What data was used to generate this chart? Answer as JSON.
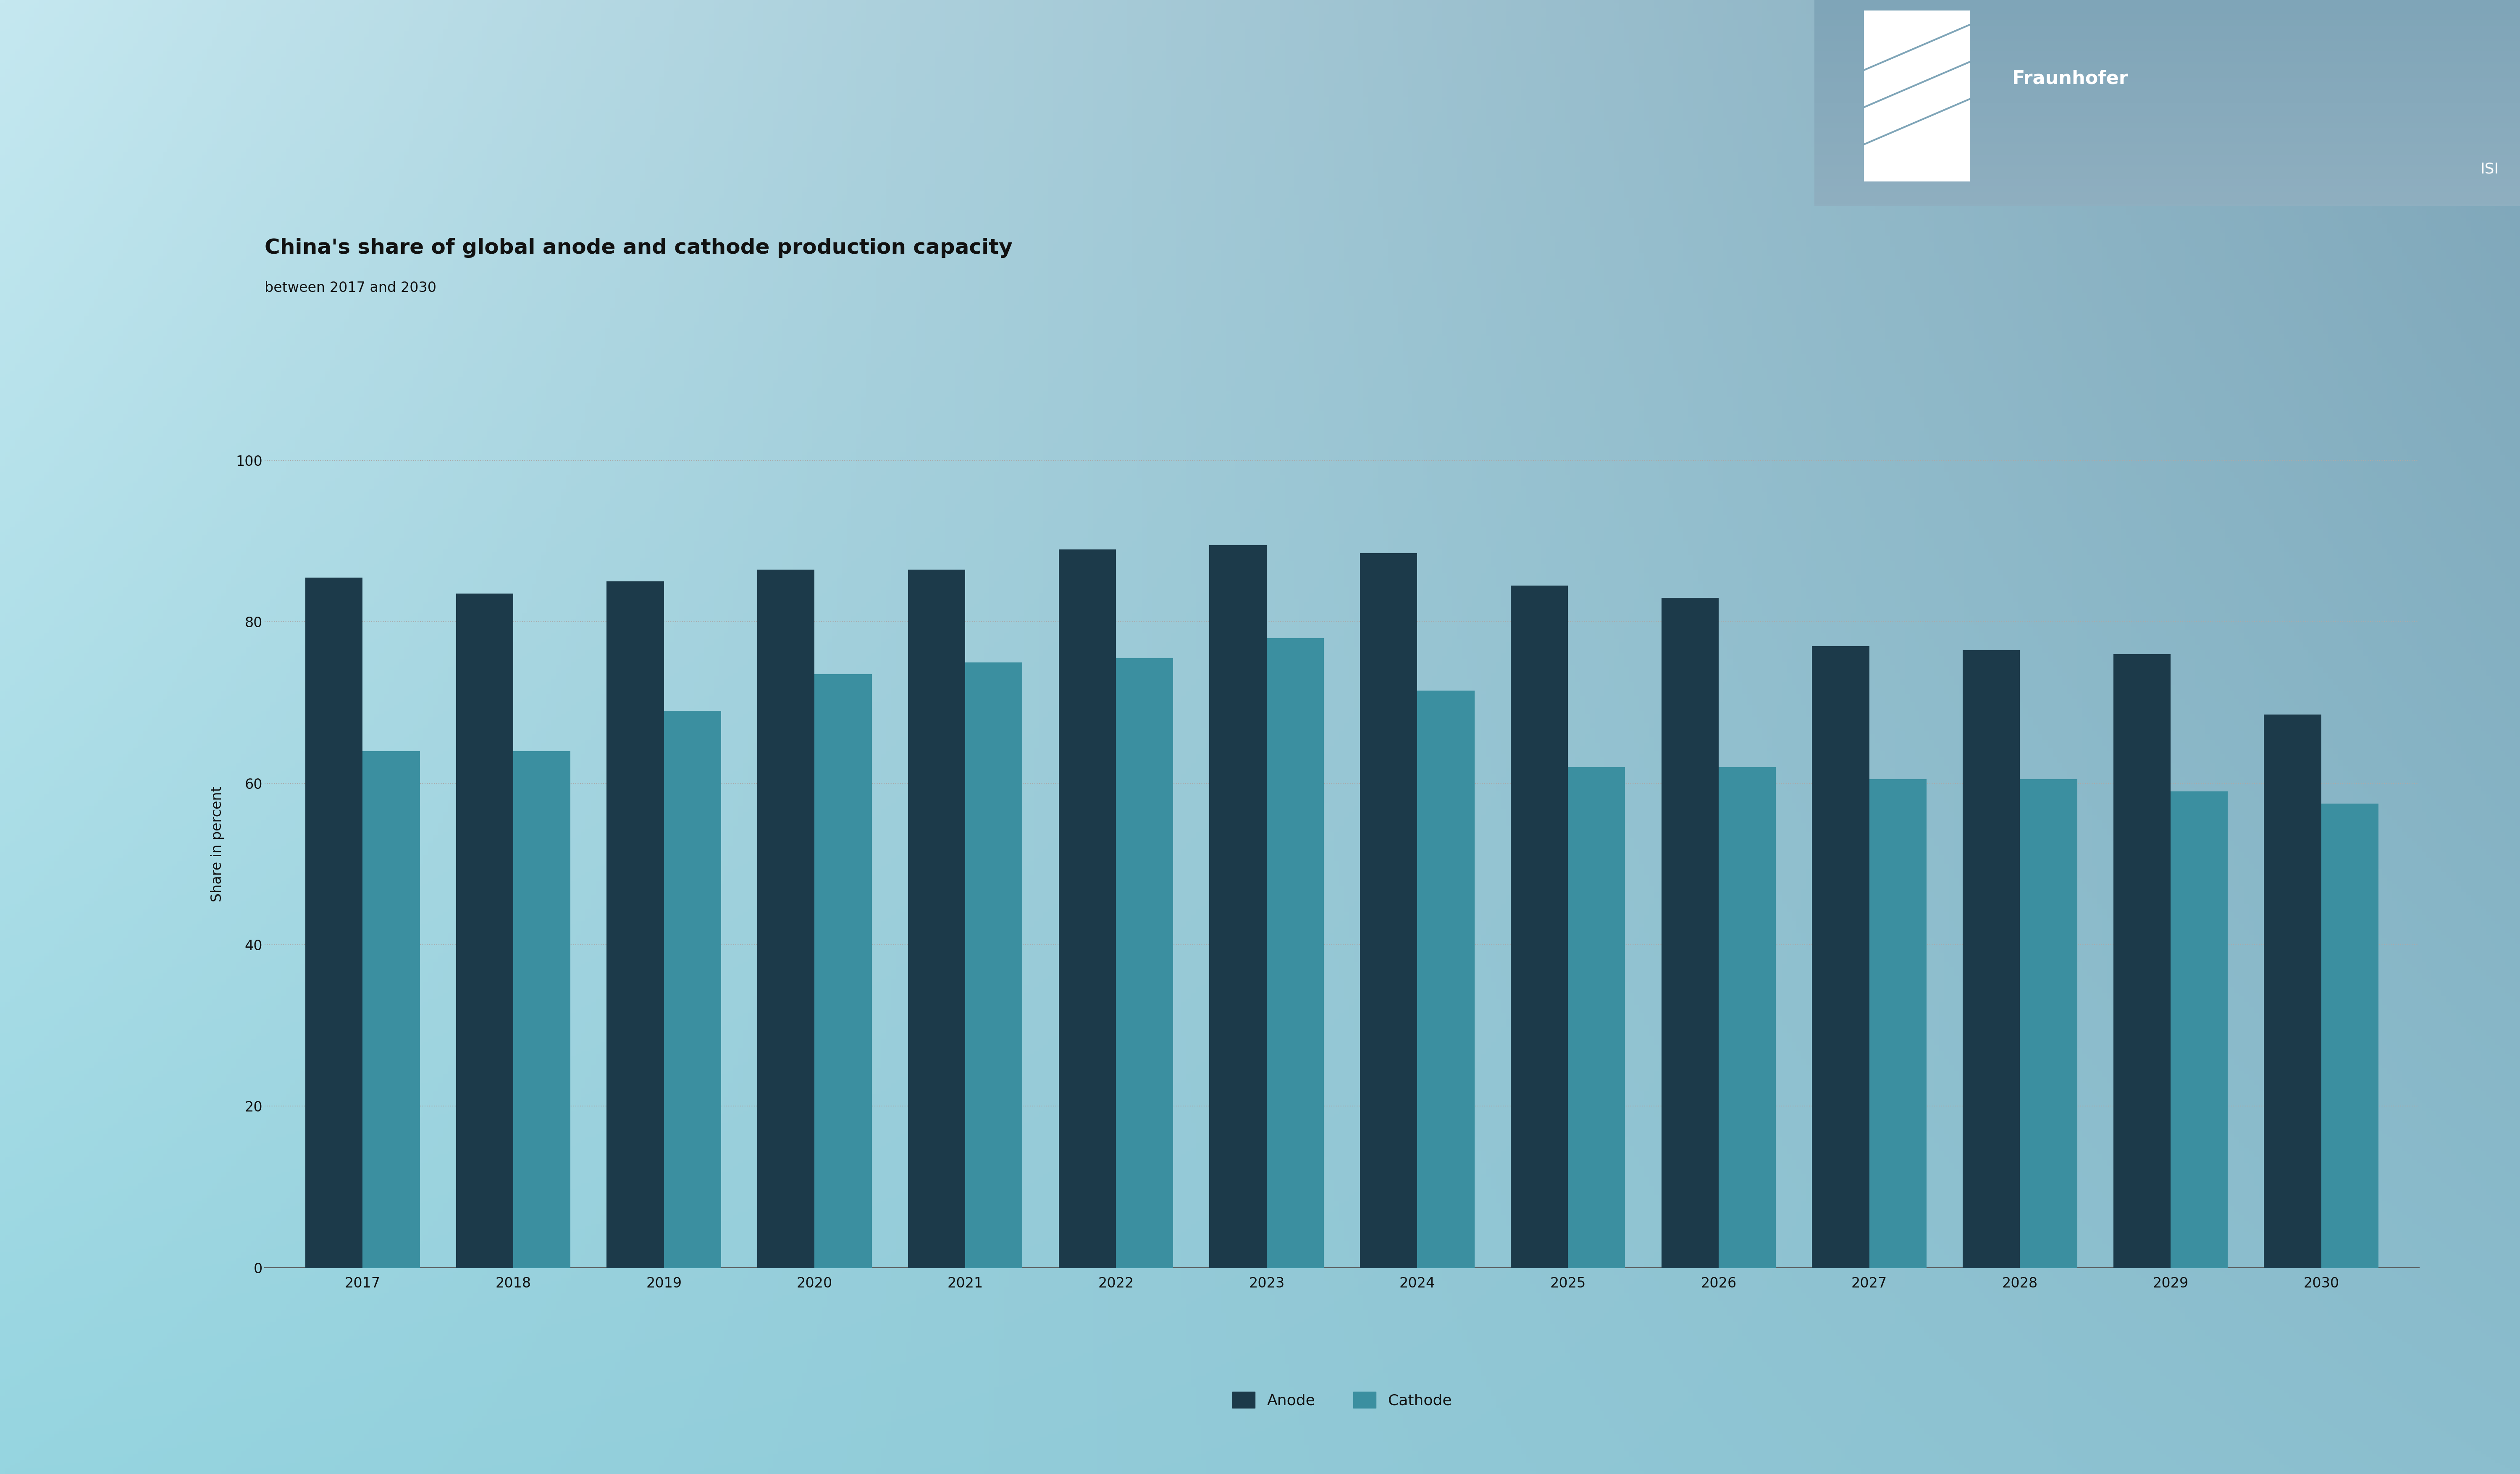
{
  "title": "China's share of global anode and cathode production capacity",
  "subtitle": "between 2017 and 2030",
  "ylabel": "Share in percent",
  "years": [
    2017,
    2018,
    2019,
    2020,
    2021,
    2022,
    2023,
    2024,
    2025,
    2026,
    2027,
    2028,
    2029,
    2030
  ],
  "anode": [
    85.5,
    83.5,
    85.0,
    86.5,
    86.5,
    89.0,
    89.5,
    88.5,
    84.5,
    83.0,
    77.0,
    76.5,
    76.0,
    68.5
  ],
  "cathode": [
    64.0,
    64.0,
    69.0,
    73.5,
    75.0,
    75.5,
    78.0,
    71.5,
    62.0,
    62.0,
    60.5,
    60.5,
    59.0,
    57.5
  ],
  "anode_color": "#1c3a4a",
  "cathode_color": "#3b8fa0",
  "bg_color_topleft": "#c5e8f0",
  "bg_color_bottomleft": "#96d5e0",
  "bg_color_topright": "#7fa5b8",
  "bg_color_bottomright": "#8bbece",
  "grid_color": "#aaaaaa",
  "text_color": "#111111",
  "title_fontsize": 36,
  "subtitle_fontsize": 24,
  "ylabel_fontsize": 24,
  "tick_fontsize": 24,
  "legend_fontsize": 26,
  "ylim": [
    0,
    105
  ],
  "yticks": [
    0,
    20,
    40,
    60,
    80,
    100
  ],
  "bar_width": 0.38,
  "white": "#ffffff"
}
